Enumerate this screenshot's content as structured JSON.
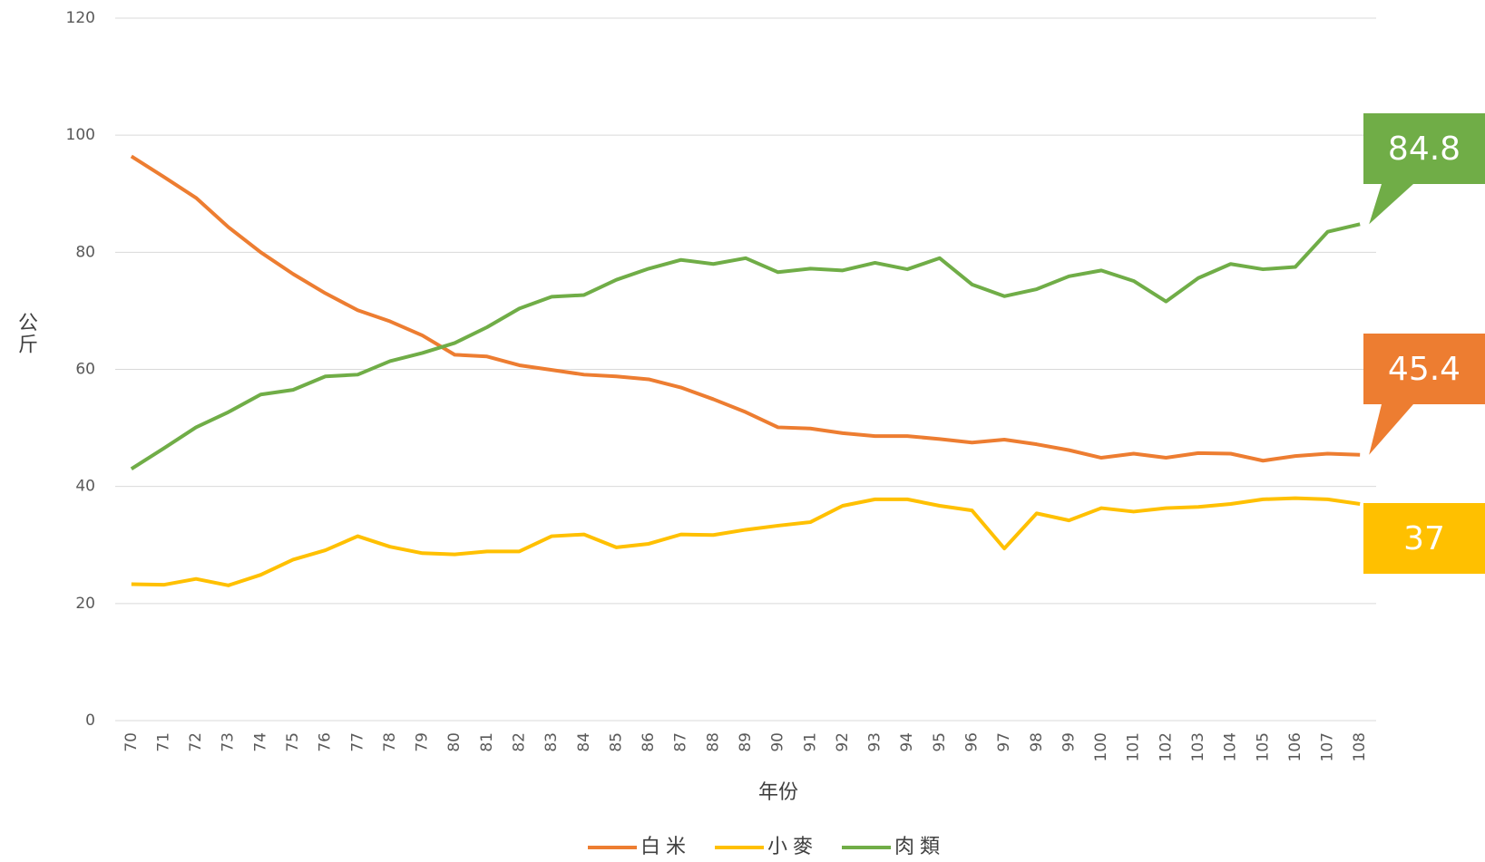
{
  "chart_data": {
    "type": "line",
    "x_label": "年份",
    "y_label": "公斤",
    "categories": [
      "70",
      "71",
      "72",
      "73",
      "74",
      "75",
      "76",
      "77",
      "78",
      "79",
      "80",
      "81",
      "82",
      "83",
      "84",
      "85",
      "86",
      "87",
      "88",
      "89",
      "90",
      "91",
      "92",
      "93",
      "94",
      "95",
      "96",
      "97",
      "98",
      "99",
      "100",
      "101",
      "102",
      "103",
      "104",
      "105",
      "106",
      "107",
      "108"
    ],
    "series": [
      {
        "name": "白米",
        "color": "#ed7d31",
        "values": [
          96.4,
          92.9,
          89.3,
          84.3,
          80.0,
          76.3,
          73.0,
          70.1,
          68.2,
          65.8,
          62.5,
          62.2,
          60.7,
          59.9,
          59.1,
          58.8,
          58.3,
          56.9,
          54.9,
          52.7,
          50.1,
          49.9,
          49.1,
          48.6,
          48.6,
          48.1,
          47.5,
          48.0,
          47.2,
          46.2,
          44.9,
          45.6,
          44.9,
          45.7,
          45.6,
          44.4,
          45.2,
          45.6,
          45.4
        ]
      },
      {
        "name": "小麥",
        "color": "#ffc000",
        "values": [
          23.3,
          23.2,
          24.2,
          23.1,
          24.9,
          27.5,
          29.1,
          31.5,
          29.7,
          28.6,
          28.4,
          28.9,
          28.9,
          31.5,
          31.8,
          29.6,
          30.2,
          31.8,
          31.7,
          32.6,
          33.3,
          33.9,
          36.7,
          37.8,
          37.8,
          36.7,
          35.9,
          29.4,
          35.4,
          34.2,
          36.3,
          35.7,
          36.3,
          36.5,
          37.0,
          37.8,
          38.0,
          37.8,
          37.0
        ]
      },
      {
        "name": "肉類",
        "color": "#70ad47",
        "values": [
          43.0,
          46.5,
          50.1,
          52.7,
          55.7,
          56.5,
          58.8,
          59.1,
          61.4,
          62.8,
          64.5,
          67.2,
          70.4,
          72.4,
          72.7,
          75.3,
          77.2,
          78.7,
          78.0,
          79.0,
          76.6,
          77.2,
          76.9,
          78.2,
          77.1,
          79.0,
          74.5,
          72.5,
          73.7,
          75.9,
          76.9,
          75.1,
          71.6,
          75.6,
          78.0,
          77.1,
          77.5,
          83.5,
          84.8
        ]
      }
    ],
    "ylim": [
      0,
      120
    ],
    "yticks": [
      0,
      20,
      40,
      60,
      80,
      100,
      120
    ],
    "grid": true,
    "legend": "bottom"
  }
}
